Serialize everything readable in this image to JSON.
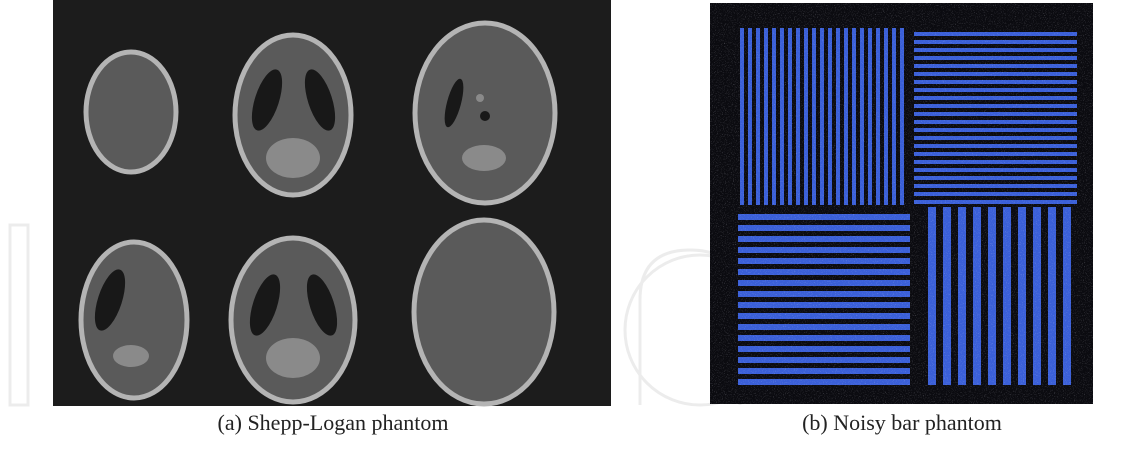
{
  "figure": {
    "panels": [
      {
        "caption": "(a) Shepp-Logan phantom"
      },
      {
        "caption": "(b) Noisy bar phantom"
      }
    ]
  }
}
